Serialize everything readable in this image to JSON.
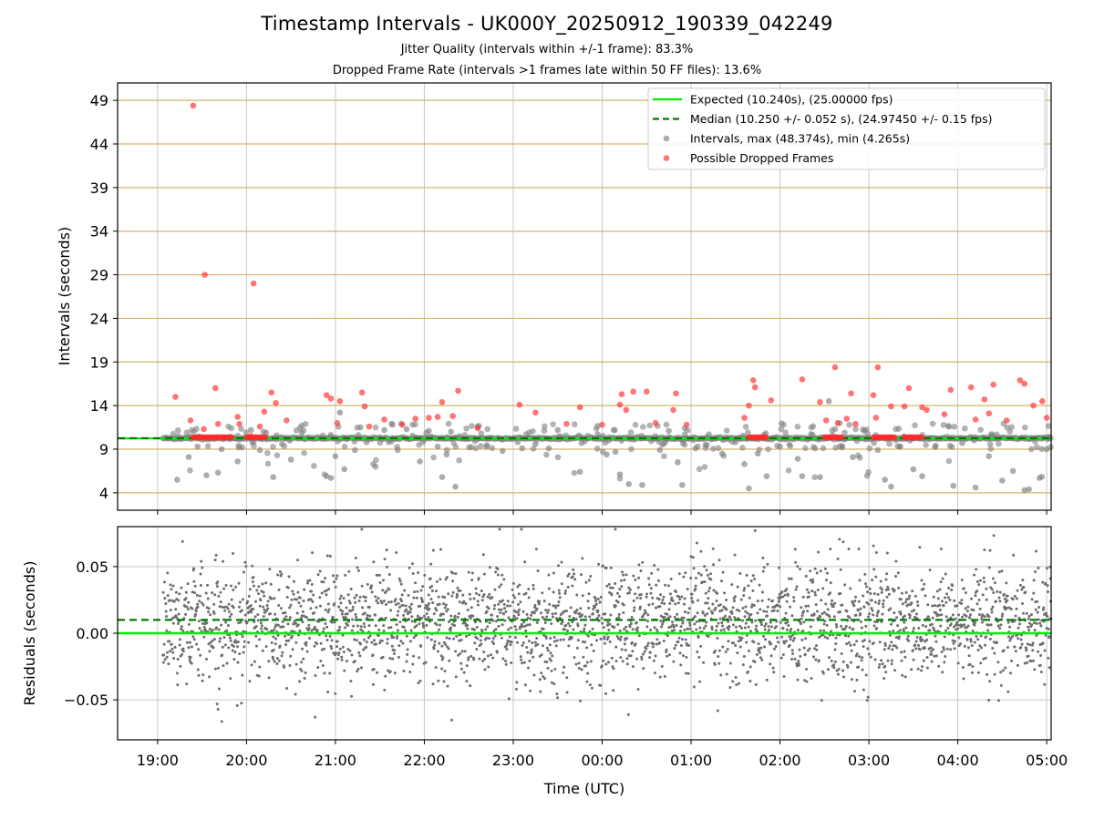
{
  "title": "Timestamp Intervals - UK000Y_20250912_190339_042249",
  "subtitle1": "Jitter Quality (intervals within +/-1 frame): 83.3%",
  "subtitle2": "Dropped Frame Rate (intervals >1 frames late within 50 FF files): 13.6%",
  "colors": {
    "expected": "#00ee00",
    "median": "#007a00",
    "intervals": "#808080",
    "dropped": "#ff2a2a",
    "gridY_top": "#d4b56a",
    "grid": "#c8c8c8"
  },
  "chart_data": [
    {
      "type": "scatter",
      "panel": "intervals",
      "ylabel": "Intervals (seconds)",
      "xlabel": "",
      "xlim": [
        18.55,
        29.05
      ],
      "ylim": [
        2.0,
        51.0
      ],
      "yticks": [
        4,
        9,
        14,
        19,
        24,
        29,
        34,
        39,
        44,
        49
      ],
      "ytick_labels": [
        "4",
        "9",
        "14",
        "19",
        "24",
        "29",
        "34",
        "39",
        "44",
        "49"
      ],
      "grid": true,
      "legend_position": "top-right",
      "legend": [
        {
          "label": "Expected (10.240s), (25.00000 fps)",
          "style": "solid-line",
          "color": "#00ee00"
        },
        {
          "label": "Median (10.250 +/- 0.052 s), (24.97450 +/- 0.15 fps)",
          "style": "dashed-line",
          "color": "#007a00"
        },
        {
          "label": "Intervals, max (48.374s), min (4.265s)",
          "style": "marker",
          "color": "#808080"
        },
        {
          "label": "Possible Dropped Frames",
          "style": "marker",
          "color": "#ff2a2a"
        }
      ],
      "expected_value": 10.24,
      "median_value": 10.25,
      "time_range_hours": [
        19.06,
        29.05
      ],
      "intervals_max": 48.374,
      "intervals_min": 4.265,
      "intervals_sample": [
        [
          19.22,
          5.5
        ],
        [
          19.35,
          8.1
        ],
        [
          19.45,
          9.3
        ],
        [
          19.55,
          6.0
        ],
        [
          19.68,
          6.3
        ],
        [
          19.72,
          9.0
        ],
        [
          19.9,
          7.6
        ],
        [
          19.95,
          9.2
        ],
        [
          20.05,
          11.2
        ],
        [
          20.15,
          8.9
        ],
        [
          20.22,
          10.9
        ],
        [
          20.3,
          5.8
        ],
        [
          20.4,
          9.6
        ],
        [
          20.5,
          7.8
        ],
        [
          20.62,
          10.9
        ],
        [
          20.9,
          5.9
        ],
        [
          20.95,
          5.7
        ],
        [
          21.0,
          8.2
        ],
        [
          21.05,
          13.2
        ],
        [
          21.1,
          6.7
        ],
        [
          21.22,
          8.9
        ],
        [
          21.28,
          11.5
        ],
        [
          21.35,
          9.8
        ],
        [
          21.45,
          7.0
        ],
        [
          21.55,
          11.2
        ],
        [
          21.7,
          8.9
        ],
        [
          21.8,
          11.3
        ],
        [
          21.95,
          7.6
        ],
        [
          22.05,
          11.1
        ],
        [
          22.15,
          9.3
        ],
        [
          22.2,
          5.8
        ],
        [
          22.25,
          8.4
        ],
        [
          22.3,
          11.0
        ],
        [
          22.35,
          4.7
        ],
        [
          22.5,
          10.2
        ],
        [
          22.6,
          11.6
        ],
        [
          22.7,
          9.3
        ],
        [
          22.88,
          8.8
        ],
        [
          23.05,
          9.8
        ],
        [
          23.1,
          9.1
        ],
        [
          23.25,
          9.6
        ],
        [
          23.4,
          9.1
        ],
        [
          23.5,
          11.2
        ],
        [
          23.75,
          6.4
        ],
        [
          23.95,
          10.7
        ],
        [
          24.05,
          8.4
        ],
        [
          24.15,
          8.7
        ],
        [
          24.2,
          6.1
        ],
        [
          24.3,
          5.0
        ],
        [
          24.45,
          4.9
        ],
        [
          24.65,
          8.9
        ],
        [
          24.75,
          11.1
        ],
        [
          24.85,
          7.5
        ],
        [
          24.9,
          4.9
        ],
        [
          25.05,
          9.1
        ],
        [
          25.2,
          10.7
        ],
        [
          25.35,
          8.5
        ],
        [
          25.5,
          9.8
        ],
        [
          25.6,
          7.3
        ],
        [
          25.65,
          4.5
        ],
        [
          25.75,
          8.5
        ],
        [
          25.85,
          5.9
        ],
        [
          26.0,
          9.3
        ],
        [
          26.2,
          7.9
        ],
        [
          26.25,
          5.9
        ],
        [
          26.45,
          5.8
        ],
        [
          26.55,
          14.5
        ],
        [
          26.7,
          9.2
        ],
        [
          26.82,
          8.1
        ],
        [
          26.95,
          11.1
        ],
        [
          27.1,
          8.9
        ],
        [
          27.18,
          5.5
        ],
        [
          27.25,
          4.7
        ],
        [
          27.35,
          9.3
        ],
        [
          27.5,
          6.7
        ],
        [
          27.6,
          5.9
        ],
        [
          27.75,
          9.4
        ],
        [
          27.95,
          4.8
        ],
        [
          28.05,
          9.7
        ],
        [
          28.2,
          4.6
        ],
        [
          28.35,
          8.2
        ],
        [
          28.5,
          5.4
        ],
        [
          28.62,
          6.5
        ],
        [
          28.75,
          4.3
        ],
        [
          28.8,
          4.4
        ],
        [
          28.92,
          5.7
        ],
        [
          29.0,
          9.0
        ]
      ],
      "dropped_sample": [
        [
          19.2,
          15.0
        ],
        [
          19.4,
          48.4
        ],
        [
          19.37,
          12.3
        ],
        [
          19.52,
          11.3
        ],
        [
          19.53,
          29.0
        ],
        [
          19.65,
          16.0
        ],
        [
          19.68,
          11.9
        ],
        [
          19.9,
          12.7
        ],
        [
          19.92,
          11.9
        ],
        [
          20.05,
          10.5
        ],
        [
          20.08,
          28.0
        ],
        [
          20.15,
          11.6
        ],
        [
          20.2,
          13.3
        ],
        [
          20.28,
          15.5
        ],
        [
          20.33,
          14.3
        ],
        [
          20.45,
          12.3
        ],
        [
          20.9,
          15.2
        ],
        [
          20.95,
          14.8
        ],
        [
          21.02,
          12.0
        ],
        [
          21.05,
          14.5
        ],
        [
          21.3,
          15.5
        ],
        [
          21.33,
          13.9
        ],
        [
          21.38,
          11.6
        ],
        [
          21.55,
          12.4
        ],
        [
          21.75,
          11.8
        ],
        [
          21.9,
          12.5
        ],
        [
          22.05,
          12.6
        ],
        [
          22.15,
          12.7
        ],
        [
          22.2,
          14.4
        ],
        [
          22.32,
          12.8
        ],
        [
          22.38,
          15.7
        ],
        [
          22.6,
          11.4
        ],
        [
          23.07,
          14.1
        ],
        [
          23.25,
          13.2
        ],
        [
          23.6,
          11.9
        ],
        [
          23.75,
          13.8
        ],
        [
          24.0,
          11.8
        ],
        [
          24.2,
          14.1
        ],
        [
          24.22,
          15.3
        ],
        [
          24.27,
          13.5
        ],
        [
          24.35,
          15.6
        ],
        [
          24.5,
          15.6
        ],
        [
          24.6,
          12.0
        ],
        [
          24.8,
          13.5
        ],
        [
          24.83,
          15.4
        ],
        [
          24.95,
          11.8
        ],
        [
          25.6,
          12.6
        ],
        [
          25.65,
          14.0
        ],
        [
          25.7,
          16.9
        ],
        [
          25.72,
          16.1
        ],
        [
          25.9,
          14.6
        ],
        [
          26.25,
          17.0
        ],
        [
          26.45,
          14.4
        ],
        [
          26.52,
          12.3
        ],
        [
          26.62,
          18.4
        ],
        [
          26.65,
          12.0
        ],
        [
          26.75,
          12.5
        ],
        [
          26.8,
          15.4
        ],
        [
          26.85,
          11.9
        ],
        [
          27.05,
          15.2
        ],
        [
          27.08,
          12.6
        ],
        [
          27.1,
          18.4
        ],
        [
          27.25,
          13.9
        ],
        [
          27.4,
          13.9
        ],
        [
          27.45,
          16.0
        ],
        [
          27.6,
          13.8
        ],
        [
          27.65,
          13.5
        ],
        [
          27.85,
          13.0
        ],
        [
          27.92,
          15.8
        ],
        [
          28.15,
          16.1
        ],
        [
          28.2,
          12.4
        ],
        [
          28.3,
          14.7
        ],
        [
          28.35,
          13.1
        ],
        [
          28.4,
          16.4
        ],
        [
          28.55,
          12.3
        ],
        [
          28.7,
          16.9
        ],
        [
          28.75,
          16.5
        ],
        [
          28.85,
          14.0
        ],
        [
          28.95,
          14.5
        ],
        [
          29.0,
          12.6
        ]
      ],
      "dropped_clusters_at_10_4": [
        [
          19.4,
          19.85
        ],
        [
          20.0,
          20.22
        ],
        [
          25.65,
          25.85
        ],
        [
          26.5,
          26.7
        ],
        [
          27.05,
          27.3
        ],
        [
          27.4,
          27.6
        ]
      ]
    },
    {
      "type": "scatter",
      "panel": "residuals",
      "ylabel": "Residuals (seconds)",
      "xlabel": "Time (UTC)",
      "xlim": [
        18.55,
        29.05
      ],
      "ylim": [
        -0.08,
        0.08
      ],
      "yticks": [
        0.05,
        0.0,
        -0.05
      ],
      "ytick_labels": [
        "0.05",
        "0.00",
        "−0.05"
      ],
      "grid": true,
      "expected_line": 0.0,
      "median_line": 0.01,
      "residual_spread": [
        -0.06,
        0.075
      ]
    }
  ],
  "xaxis": {
    "ticks": [
      19,
      20,
      21,
      22,
      23,
      24,
      25,
      26,
      27,
      28,
      29
    ],
    "tick_labels": [
      "19:00",
      "20:00",
      "21:00",
      "22:00",
      "23:00",
      "00:00",
      "01:00",
      "02:00",
      "03:00",
      "04:00",
      "05:00"
    ]
  }
}
